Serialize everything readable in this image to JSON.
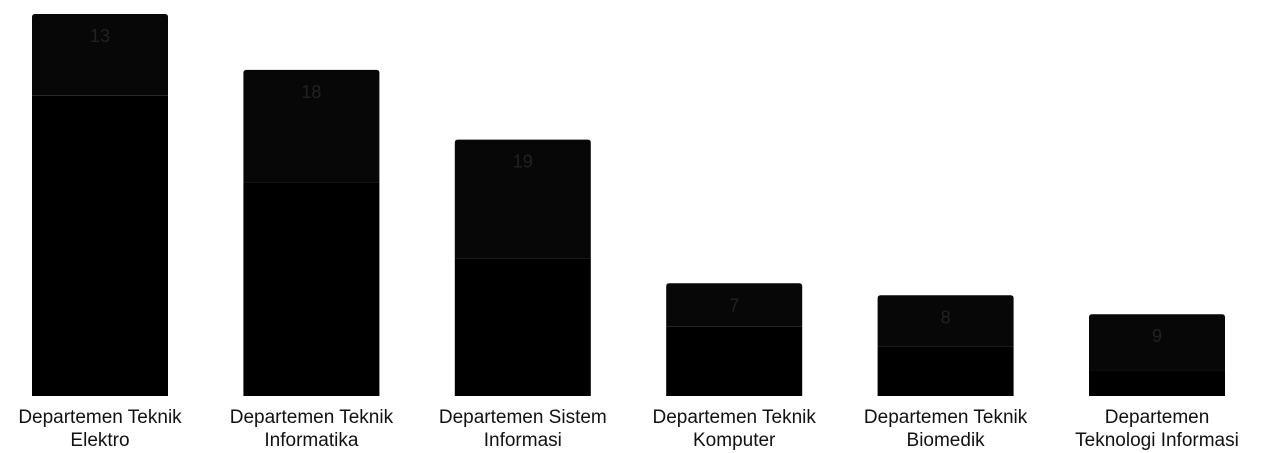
{
  "chart_data": {
    "type": "bar",
    "stacked": true,
    "categories": [
      [
        "Departemen Teknik",
        "Elektro"
      ],
      [
        "Departemen Teknik",
        "Informatika"
      ],
      [
        "Departemen Sistem",
        "Informasi"
      ],
      [
        "Departemen Teknik",
        "Komputer"
      ],
      [
        "Departemen Teknik",
        "Biomedik"
      ],
      [
        "Departemen",
        "Teknologi Informasi"
      ]
    ],
    "series": [
      {
        "values": [
          301,
          214,
          138,
          70,
          50,
          26
        ],
        "color": "#000000"
      },
      {
        "values": [
          82,
          113,
          119,
          43,
          51,
          56
        ],
        "color": "#070707"
      }
    ],
    "top_labels": [
      "13",
      "18",
      "19",
      "7",
      "8",
      "9"
    ],
    "ylim": [
      0,
      385
    ],
    "grid": false,
    "legend": "none"
  }
}
